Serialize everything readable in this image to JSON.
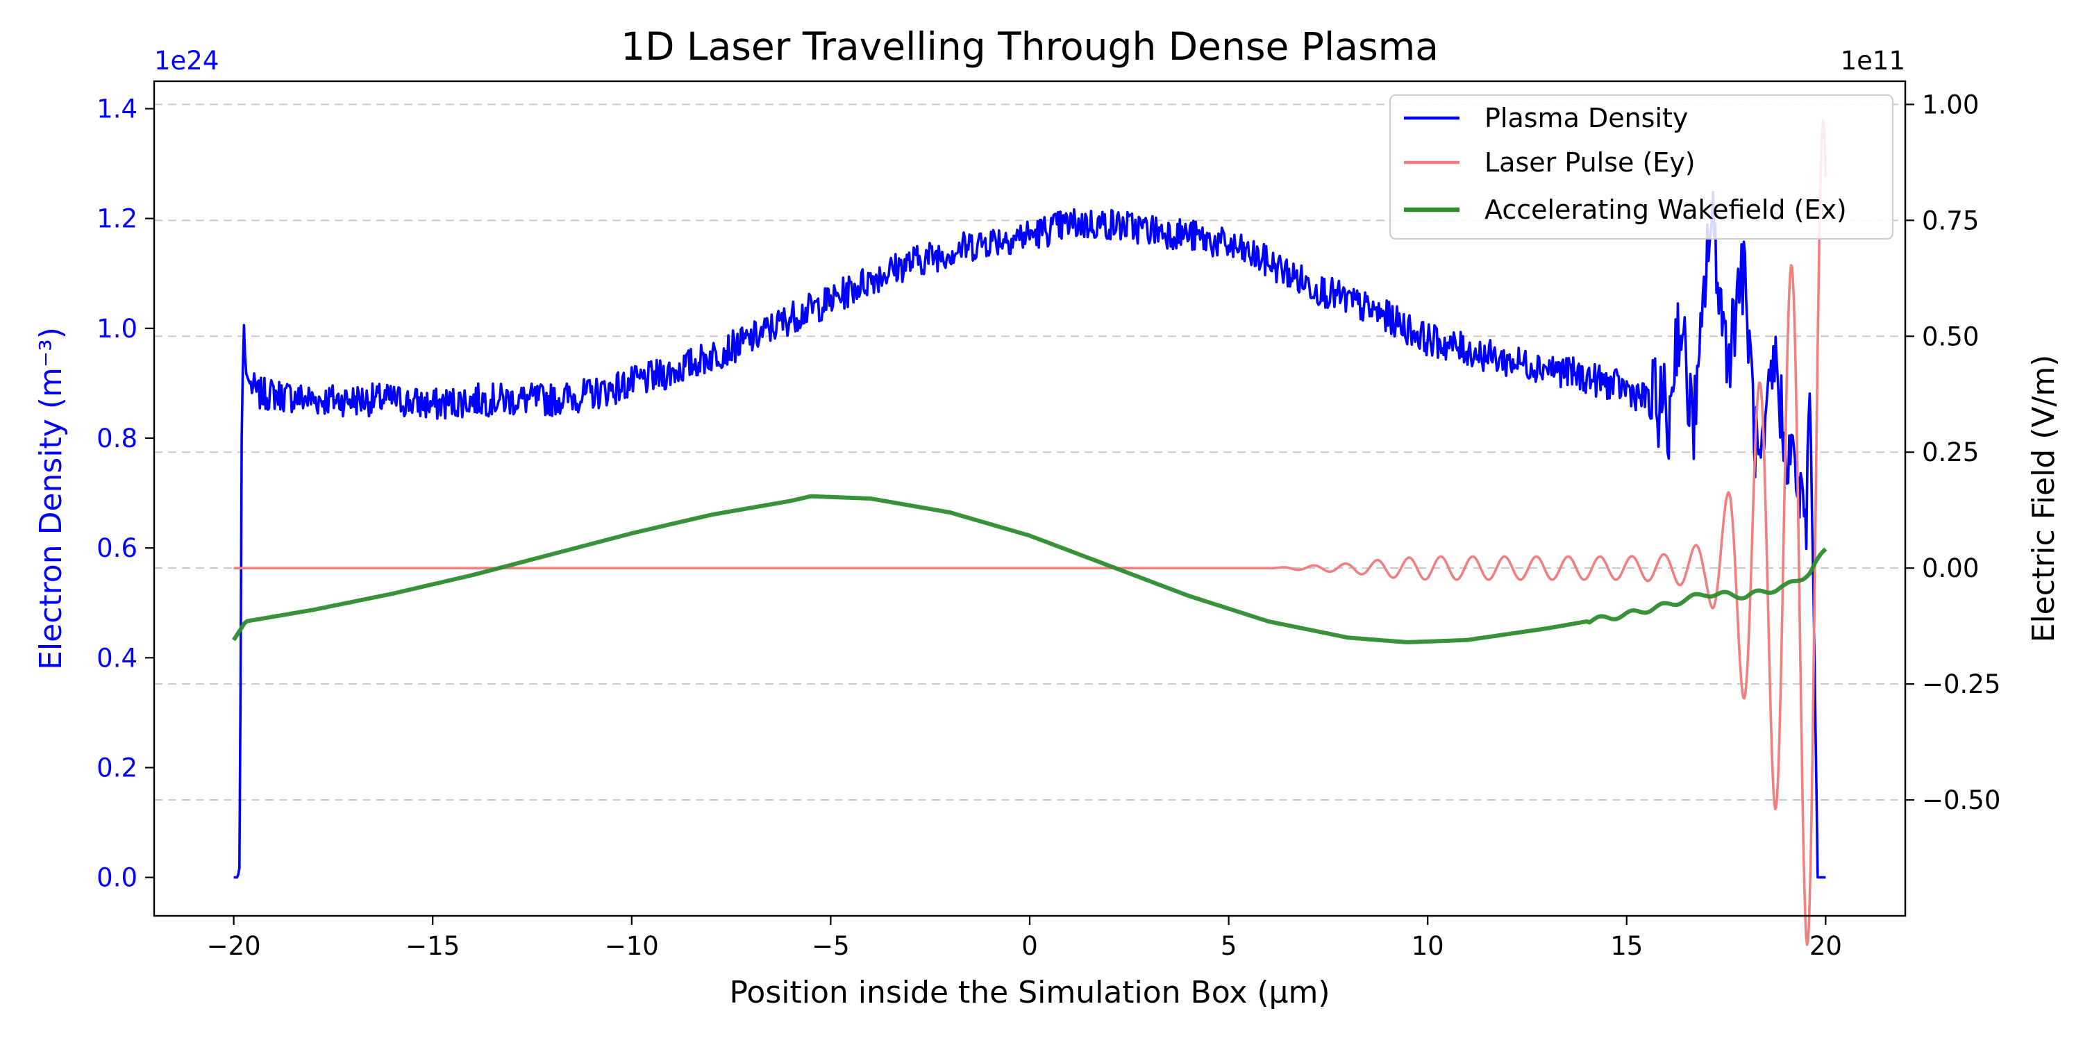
{
  "chart_data": {
    "type": "line",
    "title": "1D Laser Travelling Through Dense Plasma",
    "xlabel": "Position inside the Simulation Box (μm)",
    "xlim": [
      -22,
      22
    ],
    "xticks": [
      -20,
      -15,
      -10,
      -5,
      0,
      5,
      10,
      15,
      20
    ],
    "xtick_labels": [
      "−20",
      "−15",
      "−10",
      "−5",
      "0",
      "5",
      "10",
      "15",
      "20"
    ],
    "left_axis": {
      "label": "Electron Density (m⁻³)",
      "offset_text": "1e24",
      "color": "#0000ff",
      "ylim": [
        -0.07,
        1.45
      ],
      "ticks": [
        0.0,
        0.2,
        0.4,
        0.6,
        0.8,
        1.0,
        1.2,
        1.4
      ],
      "tick_labels": [
        "0.0",
        "0.2",
        "0.4",
        "0.6",
        "0.8",
        "1.0",
        "1.2",
        "1.4"
      ]
    },
    "right_axis": {
      "label": "Electric Field (V/m)",
      "offset_text": "1e11",
      "color": "#000000",
      "ylim": [
        -0.75,
        1.05
      ],
      "ticks": [
        -0.5,
        -0.25,
        0.0,
        0.25,
        0.5,
        0.75,
        1.0
      ],
      "tick_labels": [
        "−0.50",
        "−0.25",
        "0.00",
        "0.25",
        "0.50",
        "0.75",
        "1.00"
      ]
    },
    "grid": "horizontal dashed (right axis ticks)",
    "legend_placement": "upper right",
    "series": [
      {
        "name": "Plasma Density",
        "axis": "left",
        "color": "#0000ff",
        "x": [
          -20,
          -19.9,
          -19.85,
          -19.8,
          -19.75,
          -19.7,
          -19.6,
          -19.4,
          -19,
          -18,
          -17,
          -16,
          -15,
          -14,
          -13,
          -12,
          -11,
          -10,
          -9,
          -8,
          -7,
          -6,
          -5,
          -4,
          -3,
          -2,
          -1,
          0,
          1,
          2,
          3,
          4,
          5,
          6,
          7,
          8,
          9,
          10,
          11,
          12,
          13,
          14,
          15,
          15.5,
          16,
          16.5,
          17,
          17.5,
          18,
          18.5,
          19,
          19.3,
          19.5,
          19.6,
          19.7,
          19.8,
          20
        ],
        "y": [
          0.0,
          0.0,
          0.02,
          0.8,
          1.02,
          0.92,
          0.9,
          0.88,
          0.88,
          0.87,
          0.87,
          0.87,
          0.86,
          0.87,
          0.87,
          0.87,
          0.88,
          0.9,
          0.92,
          0.95,
          0.98,
          1.02,
          1.05,
          1.09,
          1.12,
          1.14,
          1.16,
          1.17,
          1.19,
          1.19,
          1.18,
          1.17,
          1.15,
          1.12,
          1.08,
          1.05,
          1.02,
          0.98,
          0.96,
          0.94,
          0.93,
          0.91,
          0.89,
          0.87,
          0.86,
          0.9,
          1.05,
          1.1,
          0.95,
          0.82,
          0.8,
          0.72,
          0.62,
          0.88,
          0.5,
          0.0,
          0.0
        ]
      },
      {
        "name": "Laser Pulse (Ey)",
        "axis": "right",
        "color": "#f08080",
        "x": [
          -20,
          6,
          7,
          8,
          9,
          10,
          11,
          12,
          13,
          14,
          15,
          16,
          16.5,
          17,
          17.5,
          18,
          18.5,
          19,
          19.5,
          20
        ],
        "amplitude": [
          0.0,
          0.0,
          0.005,
          0.01,
          0.02,
          0.025,
          0.025,
          0.025,
          0.025,
          0.025,
          0.025,
          0.03,
          0.04,
          0.06,
          0.15,
          0.3,
          0.45,
          0.6,
          0.8,
          0.99
        ],
        "wavelength_um": 0.8
      },
      {
        "name": "Accelerating Wakefield (Ex)",
        "axis": "right",
        "color": "#2e8b2e",
        "x": [
          -20,
          -19.7,
          -18,
          -16,
          -14,
          -12,
          -10,
          -8,
          -6,
          -5.5,
          -4,
          -2,
          0,
          2,
          4,
          6,
          8,
          9.5,
          11,
          13,
          15,
          16,
          17,
          18,
          19,
          19.6,
          20
        ],
        "y": [
          -0.155,
          -0.115,
          -0.09,
          -0.055,
          -0.015,
          0.03,
          0.075,
          0.115,
          0.145,
          0.155,
          0.15,
          0.12,
          0.07,
          0.005,
          -0.06,
          -0.115,
          -0.15,
          -0.16,
          -0.155,
          -0.13,
          -0.1,
          -0.08,
          -0.055,
          -0.06,
          -0.04,
          -0.01,
          0.04
        ]
      }
    ]
  }
}
